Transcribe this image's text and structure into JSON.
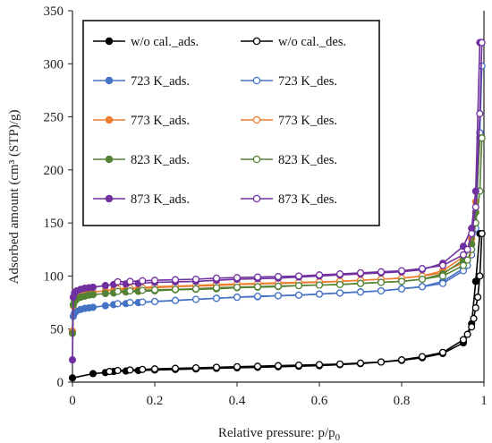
{
  "chart_data": {
    "type": "scatter",
    "xlabel": "Relative pressure: p/p",
    "xlabel_sub": "0",
    "ylabel": "Adsorbed amount (cm³ (STP)/g)",
    "xlim": [
      0,
      1
    ],
    "ylim": [
      0,
      350
    ],
    "xticks": [
      0,
      0.2,
      0.4,
      0.6,
      0.8,
      1
    ],
    "xtick_labels": [
      "0",
      "0.2",
      "0.4",
      "0.6",
      "0.8",
      "1"
    ],
    "yticks": [
      0,
      50,
      100,
      150,
      200,
      250,
      300,
      350
    ],
    "ytick_labels": [
      "0",
      "50",
      "100",
      "150",
      "200",
      "250",
      "300",
      "350"
    ],
    "grid": false,
    "legend_position": "top",
    "series": [
      {
        "name": "w/o cal._ads.",
        "color": "#000000",
        "marker": "filled",
        "x": [
          0.0,
          0.05,
          0.08,
          0.1,
          0.13,
          0.16,
          0.2,
          0.25,
          0.3,
          0.35,
          0.4,
          0.45,
          0.5,
          0.55,
          0.6,
          0.65,
          0.7,
          0.75,
          0.8,
          0.85,
          0.9,
          0.95,
          0.97,
          0.98,
          0.99
        ],
        "y": [
          4,
          8,
          9,
          10,
          10.5,
          11,
          11.5,
          12,
          12.5,
          13,
          13.5,
          14,
          14.5,
          15,
          15.5,
          16.5,
          17.5,
          19,
          20.5,
          23,
          27,
          37,
          55,
          95,
          140
        ]
      },
      {
        "name": "w/o cal._des.",
        "color": "#000000",
        "marker": "open",
        "x": [
          0.995,
          0.99,
          0.985,
          0.98,
          0.975,
          0.97,
          0.96,
          0.95,
          0.9,
          0.85,
          0.8,
          0.75,
          0.7,
          0.65,
          0.6,
          0.55,
          0.5,
          0.45,
          0.4,
          0.35,
          0.3,
          0.25,
          0.2,
          0.17,
          0.14,
          0.11,
          0.09
        ],
        "y": [
          140,
          100,
          80,
          70,
          60,
          52,
          45,
          40,
          28,
          24,
          21,
          19,
          18,
          17,
          16.5,
          16,
          15.5,
          15,
          14.5,
          14,
          13.5,
          13,
          12.5,
          12,
          11.5,
          11,
          10
        ]
      },
      {
        "name": "723 K_ads.",
        "color": "#4472C4",
        "marker": "filled",
        "x": [
          0.0,
          0.002,
          0.005,
          0.01,
          0.02,
          0.03,
          0.04,
          0.05,
          0.08,
          0.1,
          0.13,
          0.16,
          0.2,
          0.25,
          0.3,
          0.35,
          0.4,
          0.45,
          0.5,
          0.55,
          0.6,
          0.65,
          0.7,
          0.75,
          0.8,
          0.85,
          0.9,
          0.95,
          0.97,
          0.98,
          0.99
        ],
        "y": [
          47,
          62,
          65,
          67,
          68.5,
          69.5,
          70,
          70.5,
          72,
          73,
          74,
          75,
          76,
          77,
          78,
          79,
          80,
          80.5,
          81.5,
          82,
          83,
          84,
          85,
          86,
          88,
          90,
          95,
          107,
          125,
          150,
          235
        ]
      },
      {
        "name": "723 K_des.",
        "color": "#4472C4",
        "marker": "open",
        "x": [
          0.995,
          0.99,
          0.98,
          0.97,
          0.96,
          0.95,
          0.9,
          0.85,
          0.8,
          0.75,
          0.7,
          0.65,
          0.6,
          0.55,
          0.5,
          0.45,
          0.4,
          0.35,
          0.3,
          0.25,
          0.2,
          0.17,
          0.14,
          0.11
        ],
        "y": [
          298,
          235,
          145,
          120,
          110,
          105,
          93,
          90,
          88,
          86,
          85,
          84,
          83,
          82,
          81.5,
          81,
          80,
          79,
          78,
          77,
          76,
          75.5,
          75,
          74
        ]
      },
      {
        "name": "773 K_ads.",
        "color": "#ED7D31",
        "marker": "filled",
        "x": [
          0.0,
          0.002,
          0.005,
          0.01,
          0.02,
          0.03,
          0.04,
          0.05,
          0.08,
          0.1,
          0.13,
          0.16,
          0.2,
          0.25,
          0.3,
          0.35,
          0.4,
          0.45,
          0.5,
          0.55,
          0.6,
          0.65,
          0.7,
          0.75,
          0.8,
          0.85,
          0.9,
          0.95,
          0.97,
          0.98,
          0.99
        ],
        "y": [
          48,
          72,
          78,
          81,
          83,
          84,
          84.5,
          85,
          86,
          87,
          87.5,
          88,
          89,
          90,
          90.5,
          91,
          92,
          92.5,
          93,
          93.5,
          94,
          95,
          96,
          97,
          98,
          100,
          105,
          118,
          135,
          170,
          230
        ]
      },
      {
        "name": "773 K_des.",
        "color": "#ED7D31",
        "marker": "open",
        "x": [
          0.995,
          0.99,
          0.98,
          0.97,
          0.96,
          0.95,
          0.9,
          0.85,
          0.8,
          0.75,
          0.7,
          0.65,
          0.6,
          0.55,
          0.5,
          0.45,
          0.4,
          0.35,
          0.3,
          0.25,
          0.2,
          0.17,
          0.14,
          0.11
        ],
        "y": [
          230,
          230,
          160,
          130,
          120,
          113,
          103,
          100,
          98,
          97,
          96,
          95,
          94.5,
          94,
          93.5,
          93,
          92.5,
          92,
          91,
          90.5,
          90,
          89,
          88.5,
          88
        ]
      },
      {
        "name": "823 K_ads.",
        "color": "#548235",
        "marker": "filled",
        "x": [
          0.0,
          0.002,
          0.005,
          0.01,
          0.02,
          0.03,
          0.04,
          0.05,
          0.08,
          0.1,
          0.13,
          0.16,
          0.2,
          0.25,
          0.3,
          0.35,
          0.4,
          0.45,
          0.5,
          0.55,
          0.6,
          0.65,
          0.7,
          0.75,
          0.8,
          0.85,
          0.9,
          0.95,
          0.97,
          0.98,
          0.99
        ],
        "y": [
          46,
          73,
          76,
          78,
          80,
          81,
          82,
          82.5,
          83.5,
          84,
          85,
          85.5,
          86,
          87,
          87.5,
          88,
          89,
          89.5,
          90,
          91,
          91.5,
          92,
          93,
          94,
          95,
          97,
          102,
          115,
          130,
          160,
          230
        ]
      },
      {
        "name": "823 K_des.",
        "color": "#548235",
        "marker": "open",
        "x": [
          0.995,
          0.99,
          0.98,
          0.97,
          0.96,
          0.95,
          0.9,
          0.85,
          0.8,
          0.75,
          0.7,
          0.65,
          0.6,
          0.55,
          0.5,
          0.45,
          0.4,
          0.35,
          0.3,
          0.25,
          0.2,
          0.17,
          0.14,
          0.11
        ],
        "y": [
          230,
          180,
          150,
          125,
          115,
          110,
          100,
          97,
          95,
          94,
          93,
          92,
          91.5,
          91,
          90.5,
          90,
          89.5,
          89,
          88,
          87.5,
          87,
          86.5,
          86,
          85.5
        ]
      },
      {
        "name": "873 K_ads.",
        "color": "#7030A0",
        "marker": "filled",
        "x": [
          0.0,
          0.002,
          0.005,
          0.01,
          0.02,
          0.03,
          0.04,
          0.05,
          0.08,
          0.1,
          0.13,
          0.16,
          0.2,
          0.25,
          0.3,
          0.35,
          0.4,
          0.45,
          0.5,
          0.55,
          0.6,
          0.65,
          0.7,
          0.75,
          0.8,
          0.85,
          0.9,
          0.95,
          0.97,
          0.98,
          0.99
        ],
        "y": [
          21,
          80,
          84,
          86,
          87.5,
          88.5,
          89,
          89.5,
          91,
          92,
          92.5,
          93,
          94,
          94.5,
          95,
          96,
          97,
          97.5,
          98,
          99,
          100,
          101,
          102,
          103,
          104,
          106,
          112,
          128,
          145,
          180,
          320
        ]
      },
      {
        "name": "873 K_des.",
        "color": "#7030A0",
        "marker": "open",
        "x": [
          0.995,
          0.99,
          0.98,
          0.97,
          0.96,
          0.95,
          0.9,
          0.85,
          0.8,
          0.75,
          0.7,
          0.65,
          0.6,
          0.55,
          0.5,
          0.45,
          0.4,
          0.35,
          0.3,
          0.25,
          0.2,
          0.17,
          0.14,
          0.11
        ],
        "y": [
          320,
          253,
          165,
          140,
          125,
          120,
          110,
          107,
          105,
          104,
          103,
          102,
          101,
          100,
          99.5,
          99,
          98.5,
          98,
          97,
          96.5,
          96,
          95.5,
          95,
          94.5
        ]
      }
    ]
  }
}
